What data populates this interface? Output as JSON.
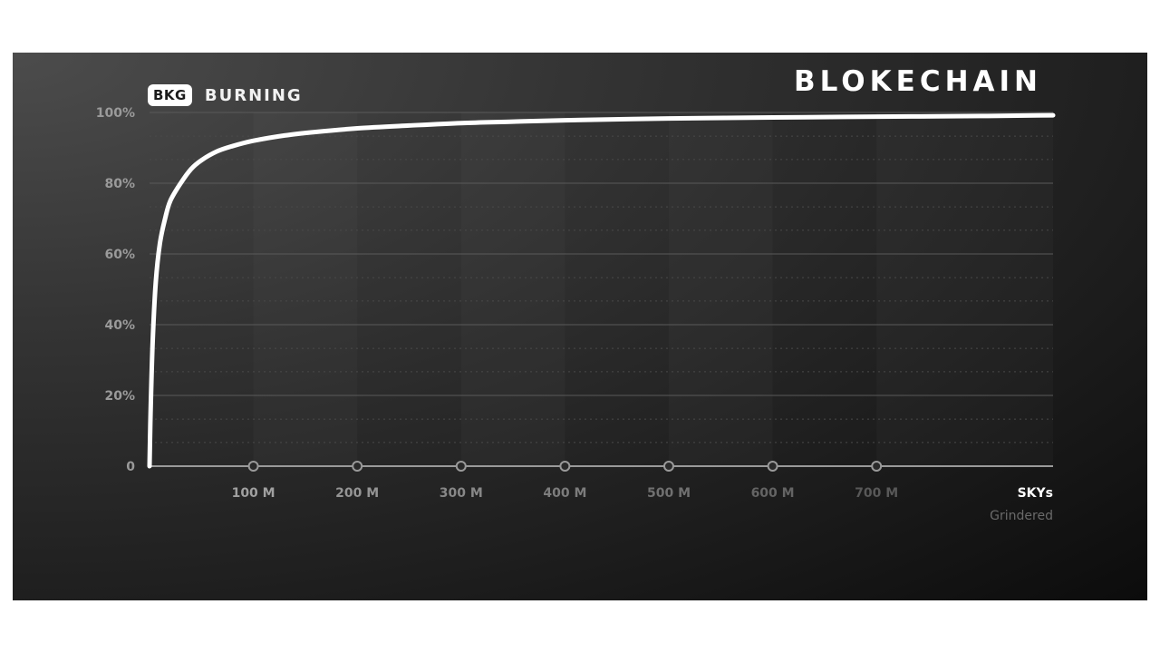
{
  "header": {
    "badge": "BKG",
    "title": "BURNING",
    "brand": "BLOKECHAIN"
  },
  "colors": {
    "curve": "#ffffff",
    "axis": "#9a9a9a",
    "grid_solid": "#5a5a5a",
    "grid_dotted": "#4a4a4a"
  },
  "chart_data": {
    "type": "line",
    "title": "BURNING",
    "xlabel": "SKYs",
    "xlabel_sub": "Grindered",
    "ylabel": "",
    "xlim": [
      0,
      870
    ],
    "ylim": [
      0,
      100
    ],
    "y_ticks": [
      {
        "value": 0,
        "label": "0"
      },
      {
        "value": 20,
        "label": "20%"
      },
      {
        "value": 40,
        "label": "40%"
      },
      {
        "value": 60,
        "label": "60%"
      },
      {
        "value": 80,
        "label": "80%"
      },
      {
        "value": 100,
        "label": "100%"
      }
    ],
    "y_minor_gridlines": [
      6.7,
      13.3,
      26.7,
      33.3,
      46.7,
      53.3,
      66.7,
      73.3,
      86.7,
      93.3
    ],
    "x_ticks": [
      {
        "value": 100,
        "label": "100 M"
      },
      {
        "value": 200,
        "label": "200 M"
      },
      {
        "value": 300,
        "label": "300 M"
      },
      {
        "value": 400,
        "label": "400 M"
      },
      {
        "value": 500,
        "label": "500 M"
      },
      {
        "value": 600,
        "label": "600 M"
      },
      {
        "value": 700,
        "label": "700 M"
      }
    ],
    "grid": true,
    "legend": "none",
    "series": [
      {
        "values": [
          {
            "x": 0,
            "y": 0
          },
          {
            "x": 1,
            "y": 15
          },
          {
            "x": 3,
            "y": 35
          },
          {
            "x": 6,
            "y": 52
          },
          {
            "x": 10,
            "y": 63
          },
          {
            "x": 15,
            "y": 70
          },
          {
            "x": 20,
            "y": 75
          },
          {
            "x": 30,
            "y": 80
          },
          {
            "x": 40,
            "y": 84
          },
          {
            "x": 50,
            "y": 86.5
          },
          {
            "x": 65,
            "y": 89
          },
          {
            "x": 80,
            "y": 90.5
          },
          {
            "x": 100,
            "y": 92
          },
          {
            "x": 130,
            "y": 93.5
          },
          {
            "x": 160,
            "y": 94.5
          },
          {
            "x": 200,
            "y": 95.5
          },
          {
            "x": 250,
            "y": 96.3
          },
          {
            "x": 300,
            "y": 97
          },
          {
            "x": 350,
            "y": 97.4
          },
          {
            "x": 400,
            "y": 97.8
          },
          {
            "x": 500,
            "y": 98.3
          },
          {
            "x": 600,
            "y": 98.6
          },
          {
            "x": 700,
            "y": 98.8
          },
          {
            "x": 800,
            "y": 99
          },
          {
            "x": 870,
            "y": 99.2
          }
        ]
      }
    ]
  }
}
